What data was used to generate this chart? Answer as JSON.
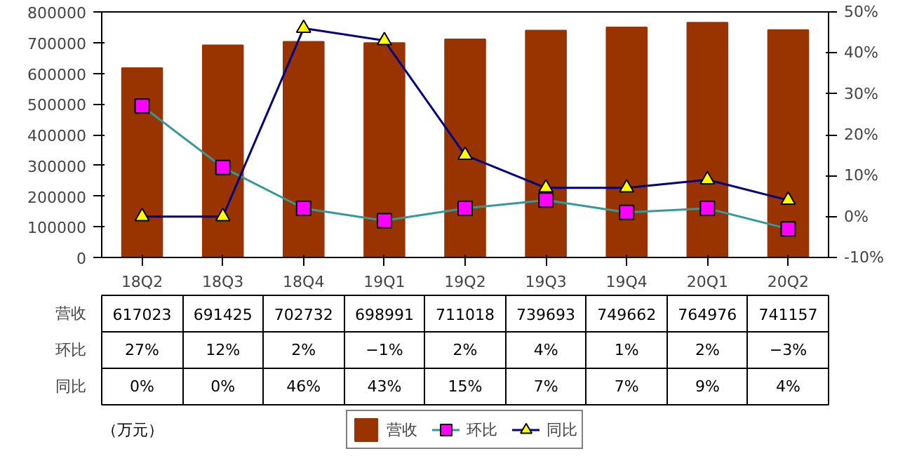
{
  "chart_data": {
    "type": "bar",
    "categories": [
      "18Q2",
      "18Q3",
      "18Q4",
      "19Q1",
      "19Q2",
      "19Q3",
      "19Q4",
      "20Q1",
      "20Q2"
    ],
    "series": [
      {
        "name": "营收",
        "color": "#993300",
        "values": [
          617023,
          691425,
          702732,
          698991,
          711018,
          739693,
          749662,
          764976,
          741157
        ],
        "value_labels": [
          "617023",
          "691425",
          "702732",
          "698991",
          "711018",
          "739693",
          "749662",
          "764976",
          "741157"
        ]
      },
      {
        "name": "环比",
        "type": "line",
        "axis": "y2",
        "marker": "square",
        "color": "#339999",
        "values": [
          27,
          12,
          2,
          -1,
          2,
          4,
          1,
          2,
          -3
        ],
        "value_labels": [
          "27%",
          "12%",
          "2%",
          "−1%",
          "2%",
          "4%",
          "1%",
          "2%",
          "−3%"
        ]
      },
      {
        "name": "同比",
        "type": "line",
        "axis": "y2",
        "marker": "triangle",
        "color": "#000080",
        "values": [
          0,
          0,
          46,
          43,
          15,
          7,
          7,
          9,
          4
        ],
        "value_labels": [
          "0%",
          "0%",
          "46%",
          "43%",
          "15%",
          "7%",
          "7%",
          "9%",
          "4%"
        ]
      }
    ],
    "ylim": [
      0,
      800000
    ],
    "yticks": [
      0,
      100000,
      200000,
      300000,
      400000,
      500000,
      600000,
      700000,
      800000
    ],
    "y2lim": [
      -10,
      50
    ],
    "y2ticks": [
      {
        "value": -10,
        "label": "-10%"
      },
      {
        "value": 0,
        "label": "0%"
      },
      {
        "value": 10,
        "label": "10%"
      },
      {
        "value": 20,
        "label": "20%"
      },
      {
        "value": 30,
        "label": "30%"
      },
      {
        "value": 40,
        "label": "40%"
      },
      {
        "value": 50,
        "label": "50%"
      }
    ],
    "grid": false,
    "legend": "bottom",
    "line_style": "solid",
    "annotations": [
      "（万元）"
    ]
  }
}
